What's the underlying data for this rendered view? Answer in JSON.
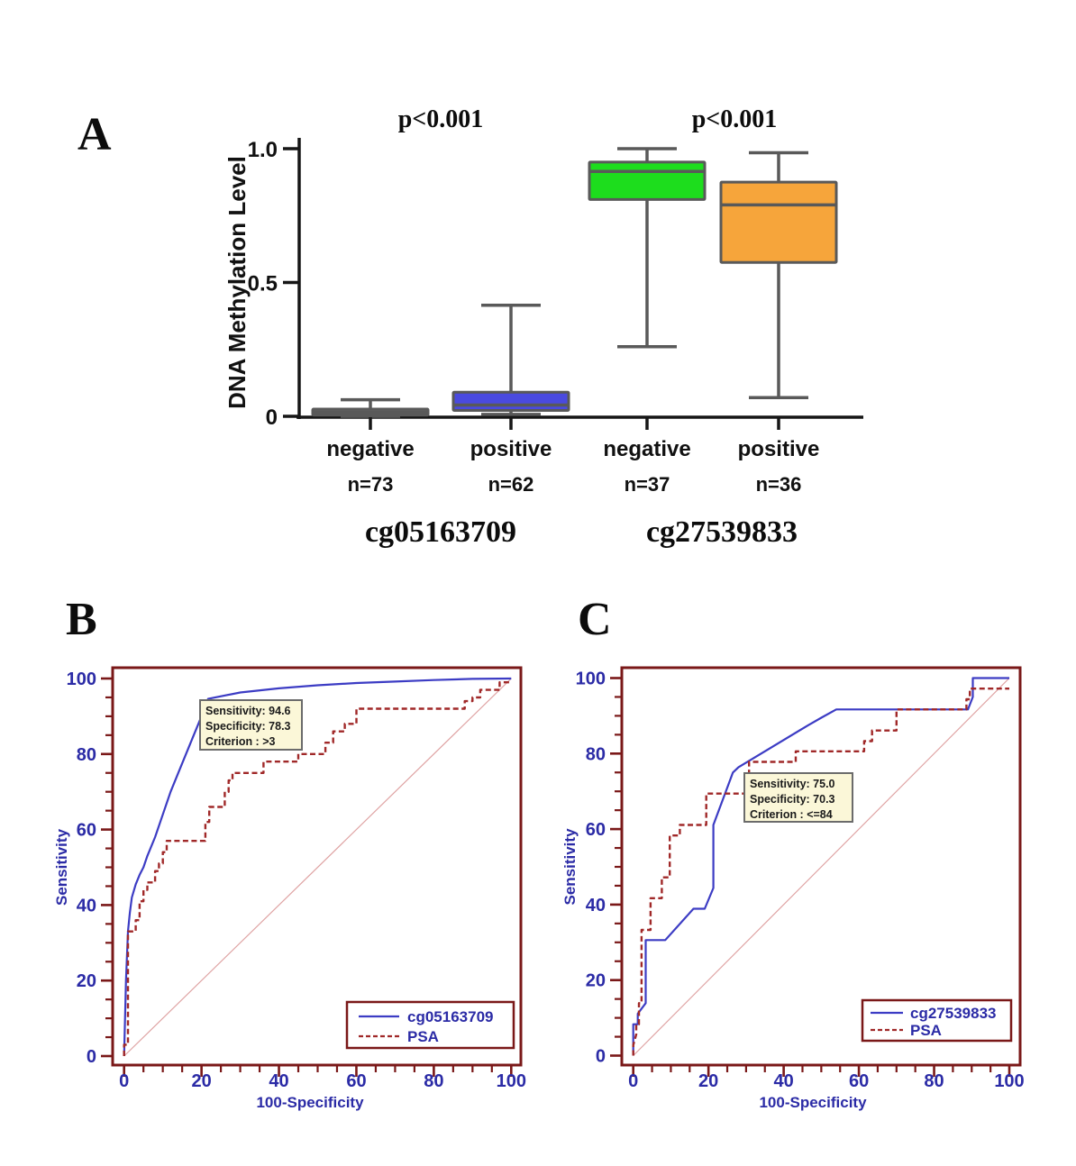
{
  "panels": {
    "a": {
      "letter": "A"
    },
    "b": {
      "letter": "B"
    },
    "c": {
      "letter": "C"
    }
  },
  "colors": {
    "axis_black": "#161616",
    "box_border": "#595959",
    "box_gray": "#6b6b6b",
    "box_blue": "#4a4adf",
    "box_green": "#1ddd1d",
    "box_orange": "#f6a53b",
    "roc_frame_maroon": "#7a1818",
    "navy_text": "#2b2ba6",
    "curve_blue": "#3c3cc4",
    "curve_red": "#a02828",
    "diagonal_pink": "#dfa3a3",
    "annotation_bg": "#fbf7d8",
    "annotation_border": "#6b6b6b",
    "legend_bg": "#ffffff"
  },
  "chart_data": [
    {
      "type": "box",
      "panel": "A",
      "ylabel": "DNA Methylation Level",
      "ylim": [
        0,
        1
      ],
      "yticks": [
        {
          "value": 0,
          "label": "0"
        },
        {
          "value": 0.5,
          "label": "0.5"
        },
        {
          "value": 1.0,
          "label": "1.0"
        }
      ],
      "groups": [
        {
          "site": "cg05163709",
          "p_label": "p<0.001",
          "boxes": [
            {
              "category": "negative",
              "n_label": "n=73",
              "fill_key": "box_gray",
              "whisker_low": 0.0,
              "q1": 0.004,
              "median": 0.015,
              "q3": 0.027,
              "whisker_high": 0.062
            },
            {
              "category": "positive",
              "n_label": "n=62",
              "fill_key": "box_blue",
              "whisker_low": 0.007,
              "q1": 0.022,
              "median": 0.042,
              "q3": 0.09,
              "whisker_high": 0.415
            }
          ]
        },
        {
          "site": "cg27539833",
          "p_label": "p<0.001",
          "boxes": [
            {
              "category": "negative",
              "n_label": "n=37",
              "fill_key": "box_green",
              "whisker_low": 0.26,
              "q1": 0.81,
              "median": 0.915,
              "q3": 0.95,
              "whisker_high": 1.0
            },
            {
              "category": "positive",
              "n_label": "n=36",
              "fill_key": "box_orange",
              "whisker_low": 0.07,
              "q1": 0.575,
              "median": 0.79,
              "q3": 0.875,
              "whisker_high": 0.985
            }
          ]
        }
      ]
    },
    {
      "type": "line",
      "panel": "B",
      "xlabel": "100-Specificity",
      "ylabel": "Sensitivity",
      "xlim": [
        0,
        100
      ],
      "ylim": [
        0,
        100
      ],
      "xticks": [
        0,
        20,
        40,
        60,
        80,
        100
      ],
      "yticks": [
        0,
        20,
        40,
        60,
        80,
        100
      ],
      "minor_tick_step": 5,
      "diagonal": true,
      "annotation": {
        "lines": [
          "Sensitivity: 94.6",
          "Specificity: 78.3",
          "Criterion : >3"
        ]
      },
      "legend": [
        {
          "label": "cg05163709",
          "style": "solid"
        },
        {
          "label": "PSA",
          "style": "dashed"
        }
      ],
      "series": [
        {
          "name": "cg05163709",
          "style": "solid",
          "color_key": "curve_blue",
          "points": [
            [
              0,
              0
            ],
            [
              0.5,
              20
            ],
            [
              1,
              33
            ],
            [
              1.5,
              38
            ],
            [
              2,
              42
            ],
            [
              3,
              45.5
            ],
            [
              4,
              48
            ],
            [
              5,
              50
            ],
            [
              6,
              53
            ],
            [
              8,
              58
            ],
            [
              10,
              64
            ],
            [
              12,
              70
            ],
            [
              14,
              75
            ],
            [
              16,
              80
            ],
            [
              18,
              85
            ],
            [
              20,
              90
            ],
            [
              21.7,
              94.6
            ],
            [
              30,
              96.3
            ],
            [
              40,
              97.4
            ],
            [
              50,
              98.2
            ],
            [
              60,
              98.8
            ],
            [
              70,
              99.2
            ],
            [
              80,
              99.6
            ],
            [
              90,
              99.9
            ],
            [
              100,
              100
            ]
          ]
        },
        {
          "name": "PSA",
          "style": "dashed",
          "color_key": "curve_red",
          "points": [
            [
              0,
              0
            ],
            [
              0,
              3
            ],
            [
              1,
              3
            ],
            [
              1,
              33
            ],
            [
              3,
              33
            ],
            [
              3,
              36
            ],
            [
              4,
              36
            ],
            [
              4,
              41
            ],
            [
              5,
              41
            ],
            [
              5,
              44
            ],
            [
              6,
              44
            ],
            [
              6,
              46
            ],
            [
              8,
              46
            ],
            [
              8,
              49
            ],
            [
              9,
              49
            ],
            [
              9,
              51
            ],
            [
              10,
              51
            ],
            [
              10,
              54
            ],
            [
              11,
              54
            ],
            [
              11,
              57
            ],
            [
              21,
              57
            ],
            [
              21,
              62
            ],
            [
              22,
              62
            ],
            [
              22,
              66
            ],
            [
              26,
              66
            ],
            [
              26,
              70
            ],
            [
              27,
              70
            ],
            [
              27,
              73
            ],
            [
              28,
              73
            ],
            [
              28,
              75
            ],
            [
              36,
              75
            ],
            [
              36,
              78
            ],
            [
              45,
              78
            ],
            [
              45,
              80
            ],
            [
              52,
              80
            ],
            [
              52,
              83
            ],
            [
              54,
              83
            ],
            [
              54,
              86
            ],
            [
              57,
              86
            ],
            [
              57,
              88
            ],
            [
              60,
              88
            ],
            [
              60,
              92
            ],
            [
              63,
              92
            ],
            [
              88,
              92
            ],
            [
              88,
              94
            ],
            [
              90,
              94
            ],
            [
              90,
              95
            ],
            [
              92,
              95
            ],
            [
              92,
              97
            ],
            [
              97,
              97
            ],
            [
              97,
              99
            ],
            [
              100,
              99
            ]
          ]
        }
      ]
    },
    {
      "type": "line",
      "panel": "C",
      "xlabel": "100-Specificity",
      "ylabel": "Sensitivity",
      "xlim": [
        0,
        100
      ],
      "ylim": [
        0,
        100
      ],
      "xticks": [
        0,
        20,
        40,
        60,
        80,
        100
      ],
      "yticks": [
        0,
        20,
        40,
        60,
        80,
        100
      ],
      "minor_tick_step": 5,
      "diagonal": true,
      "annotation": {
        "lines": [
          "Sensitivity: 75.0",
          "Specificity: 70.3",
          "Criterion : <=84"
        ]
      },
      "legend": [
        {
          "label": "cg27539833",
          "style": "solid"
        },
        {
          "label": "PSA",
          "style": "dashed"
        }
      ],
      "series": [
        {
          "name": "cg27539833",
          "style": "solid",
          "color_key": "curve_blue",
          "points": [
            [
              0,
              0
            ],
            [
              0,
              8.3
            ],
            [
              1.2,
              8.3
            ],
            [
              1.2,
              11.1
            ],
            [
              3.3,
              13.9
            ],
            [
              3.3,
              30.6
            ],
            [
              8.5,
              30.6
            ],
            [
              16,
              38.9
            ],
            [
              19,
              38.9
            ],
            [
              21.3,
              44.4
            ],
            [
              21.3,
              61.1
            ],
            [
              26.5,
              75
            ],
            [
              28,
              76.4
            ],
            [
              46.5,
              87.5
            ],
            [
              50,
              89.5
            ],
            [
              54,
              91.7
            ],
            [
              89,
              91.7
            ],
            [
              90.3,
              95
            ],
            [
              90.3,
              100
            ],
            [
              100,
              100
            ]
          ]
        },
        {
          "name": "PSA",
          "style": "dashed",
          "color_key": "curve_red",
          "points": [
            [
              0,
              0
            ],
            [
              0,
              2.8
            ],
            [
              0.8,
              5.6
            ],
            [
              0.8,
              8.3
            ],
            [
              1.5,
              8.3
            ],
            [
              1.5,
              13.9
            ],
            [
              2.2,
              13.9
            ],
            [
              2.2,
              33.3
            ],
            [
              4.6,
              33.3
            ],
            [
              4.6,
              41.7
            ],
            [
              7.6,
              41.7
            ],
            [
              7.6,
              47.2
            ],
            [
              9.7,
              47.2
            ],
            [
              9.7,
              58.3
            ],
            [
              12.4,
              58.3
            ],
            [
              12.4,
              61.1
            ],
            [
              19.4,
              61.1
            ],
            [
              19.4,
              69.4
            ],
            [
              30.8,
              69.4
            ],
            [
              30.8,
              77.8
            ],
            [
              43.2,
              77.8
            ],
            [
              43.2,
              80.6
            ],
            [
              61.4,
              80.6
            ],
            [
              61.4,
              83.3
            ],
            [
              63.5,
              83.3
            ],
            [
              63.5,
              86.1
            ],
            [
              70,
              86.1
            ],
            [
              70,
              91.7
            ],
            [
              88.6,
              91.7
            ],
            [
              88.6,
              94.4
            ],
            [
              89.5,
              94.4
            ],
            [
              89.5,
              97.2
            ],
            [
              100,
              97.2
            ]
          ]
        }
      ]
    }
  ]
}
